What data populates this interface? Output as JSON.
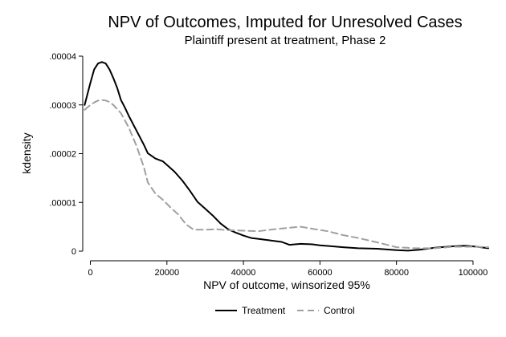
{
  "chart_data": {
    "type": "line",
    "title": "NPV of Outcomes, Imputed for Unresolved Cases",
    "subtitle": "Plaintiff present at treatment, Phase 2",
    "xlabel": "NPV of outcome, winsorized 95%",
    "ylabel": "kdensity",
    "xlim": [
      -2000,
      104000
    ],
    "ylim": [
      0,
      4e-05
    ],
    "x_ticks": [
      0,
      20000,
      40000,
      60000,
      80000,
      100000
    ],
    "y_ticks": [
      0,
      1e-05,
      2e-05,
      3e-05,
      4e-05
    ],
    "x_tick_labels": [
      "0",
      "20000",
      "40000",
      "60000",
      "80000",
      "100000"
    ],
    "y_tick_labels": [
      "0",
      ".00001",
      ".00002",
      ".00003",
      ".00004"
    ],
    "grid": false,
    "legend_position": "bottom",
    "series": [
      {
        "name": "Treatment",
        "color": "#000000",
        "dash": "solid",
        "x": [
          -1500,
          0,
          1000,
          2000,
          3000,
          4000,
          5000,
          6000,
          7000,
          8000,
          9000,
          10000,
          12000,
          14000,
          15000,
          17000,
          19000,
          20000,
          22000,
          24000,
          26000,
          28000,
          30000,
          32000,
          34000,
          36000,
          38000,
          40000,
          42000,
          44000,
          46000,
          48000,
          50000,
          52000,
          55000,
          58000,
          60000,
          63000,
          66000,
          70000,
          75000,
          80000,
          83000,
          86000,
          90000,
          95000,
          98000,
          101000,
          104000
        ],
        "y": [
          3e-05,
          3.45e-05,
          3.73e-05,
          3.85e-05,
          3.88e-05,
          3.85e-05,
          3.73e-05,
          3.55e-05,
          3.35e-05,
          3.1e-05,
          2.95e-05,
          2.78e-05,
          2.48e-05,
          2.18e-05,
          2.01e-05,
          1.9e-05,
          1.84e-05,
          1.77e-05,
          1.63e-05,
          1.45e-05,
          1.24e-05,
          1.01e-05,
          8.7e-06,
          7.3e-06,
          5.7e-06,
          4.5e-06,
          3.8e-06,
          3.2e-06,
          2.7e-06,
          2.5e-06,
          2.3e-06,
          2.1e-06,
          1.9e-06,
          1.3e-06,
          1.5e-06,
          1.4e-06,
          1.2e-06,
          1e-06,
          8e-07,
          6e-07,
          5e-07,
          2e-07,
          1e-07,
          3e-07,
          7e-07,
          1e-06,
          1.1e-06,
          9e-07,
          6e-07
        ]
      },
      {
        "name": "Control",
        "color": "#a0a0a0",
        "dash": "dashed",
        "x": [
          -1500,
          0,
          1000,
          2000,
          3000,
          4000,
          5000,
          6000,
          8000,
          10000,
          12000,
          14000,
          15000,
          17000,
          19000,
          21000,
          23000,
          25000,
          27000,
          30000,
          33000,
          36000,
          40000,
          44000,
          48000,
          52000,
          55000,
          58000,
          62000,
          66000,
          70000,
          75000,
          80000,
          85000,
          90000,
          95000,
          100000,
          104000
        ],
        "y": [
          2.9e-05,
          3e-05,
          3.05e-05,
          3.09e-05,
          3.1e-05,
          3.09e-05,
          3.06e-05,
          3e-05,
          2.83e-05,
          2.54e-05,
          2.17e-05,
          1.72e-05,
          1.41e-05,
          1.18e-05,
          1.05e-05,
          8.9e-06,
          7.5e-06,
          5.5e-06,
          4.4e-06,
          4.4e-06,
          4.5e-06,
          4.3e-06,
          4.2e-06,
          4.1e-06,
          4.5e-06,
          4.8e-06,
          5e-06,
          4.6e-06,
          4.1e-06,
          3.3e-06,
          2.7e-06,
          1.8e-06,
          8e-07,
          6e-07,
          6e-07,
          9e-07,
          9e-07,
          8e-07
        ]
      }
    ]
  }
}
